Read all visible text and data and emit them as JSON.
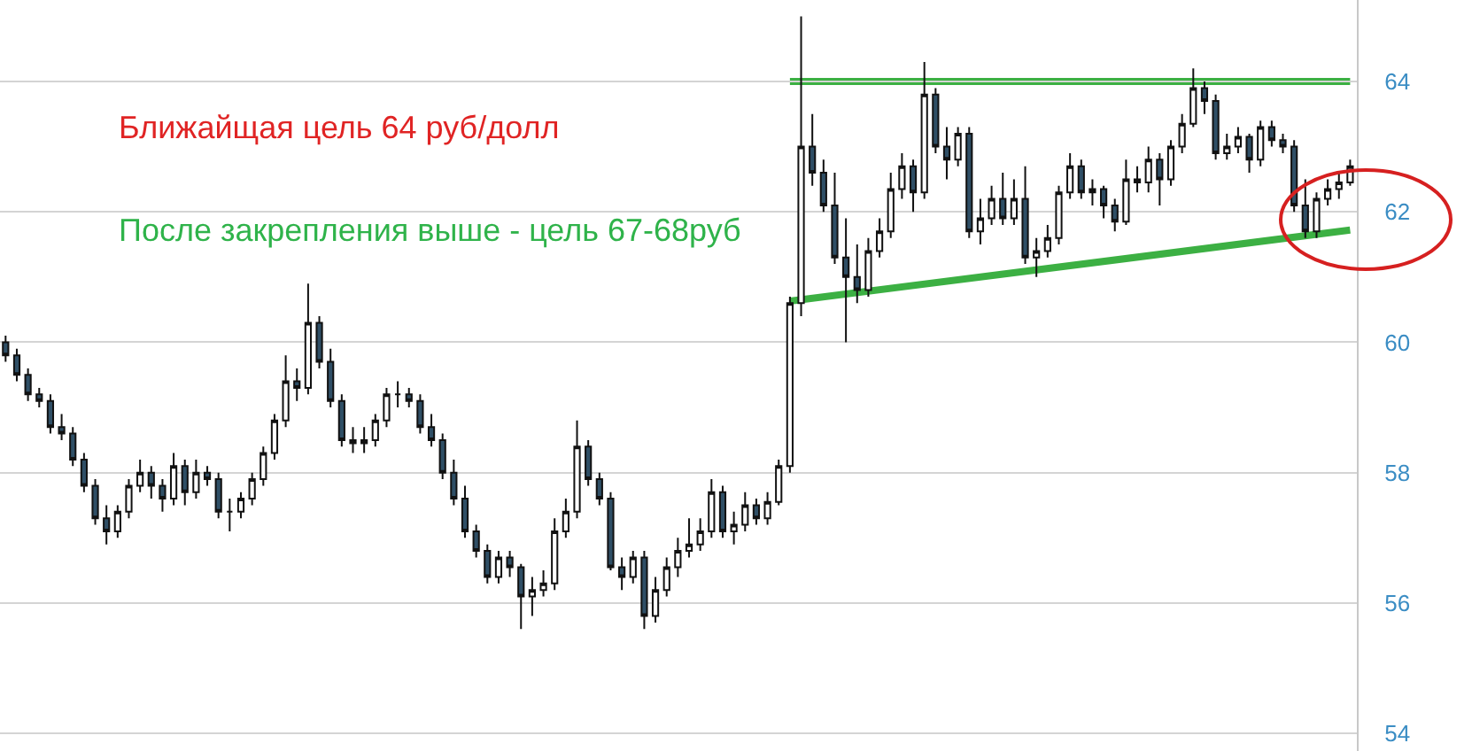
{
  "chart_data": {
    "type": "candlestick",
    "categories": [
      null,
      null,
      null,
      null,
      null,
      null,
      null,
      null,
      null,
      null,
      null,
      null,
      null,
      null,
      null,
      null,
      null,
      null,
      null,
      null,
      null,
      null,
      null,
      null,
      null,
      null,
      null,
      null,
      null,
      null,
      null,
      null,
      null,
      null,
      null,
      null,
      null,
      null,
      null,
      null,
      null,
      null,
      null,
      null,
      null,
      null,
      null,
      null,
      null,
      null,
      null,
      null,
      null,
      null,
      null,
      null,
      null,
      null,
      null,
      null,
      null,
      null,
      null,
      null,
      null,
      null,
      null,
      null,
      null,
      null,
      null,
      null,
      null,
      null,
      null,
      null,
      null,
      null,
      null,
      null,
      null,
      null,
      null,
      null,
      null,
      null,
      null,
      null,
      null,
      null,
      null,
      null,
      null,
      null,
      null,
      null,
      null,
      null,
      null,
      null,
      null,
      null,
      null,
      null,
      null,
      null,
      null,
      null,
      null,
      null,
      null,
      null,
      null,
      null,
      null,
      null,
      null,
      null,
      null,
      null,
      null
    ],
    "ohlc": [
      [
        60.0,
        60.1,
        59.7,
        59.8
      ],
      [
        59.8,
        59.9,
        59.4,
        59.5
      ],
      [
        59.5,
        59.6,
        59.1,
        59.2
      ],
      [
        59.2,
        59.3,
        59.0,
        59.1
      ],
      [
        59.1,
        59.2,
        58.6,
        58.7
      ],
      [
        58.7,
        58.9,
        58.5,
        58.6
      ],
      [
        58.6,
        58.7,
        58.1,
        58.2
      ],
      [
        58.2,
        58.3,
        57.7,
        57.8
      ],
      [
        57.8,
        57.9,
        57.2,
        57.3
      ],
      [
        57.3,
        57.5,
        56.9,
        57.1
      ],
      [
        57.1,
        57.5,
        57.0,
        57.4
      ],
      [
        57.4,
        57.9,
        57.3,
        57.8
      ],
      [
        57.8,
        58.2,
        57.7,
        58.0
      ],
      [
        58.0,
        58.1,
        57.6,
        57.8
      ],
      [
        57.8,
        57.9,
        57.4,
        57.6
      ],
      [
        57.6,
        58.3,
        57.5,
        58.1
      ],
      [
        58.1,
        58.2,
        57.5,
        57.7
      ],
      [
        57.7,
        58.2,
        57.6,
        58.0
      ],
      [
        58.0,
        58.1,
        57.8,
        57.9
      ],
      [
        57.9,
        58.0,
        57.3,
        57.4
      ],
      [
        57.4,
        57.6,
        57.1,
        57.4
      ],
      [
        57.4,
        57.7,
        57.3,
        57.6
      ],
      [
        57.6,
        58.0,
        57.5,
        57.9
      ],
      [
        57.9,
        58.4,
        57.8,
        58.3
      ],
      [
        58.3,
        58.9,
        58.2,
        58.8
      ],
      [
        58.8,
        59.8,
        58.7,
        59.4
      ],
      [
        59.4,
        59.6,
        59.1,
        59.3
      ],
      [
        59.3,
        60.9,
        59.2,
        60.3
      ],
      [
        60.3,
        60.4,
        59.6,
        59.7
      ],
      [
        59.7,
        59.9,
        59.0,
        59.1
      ],
      [
        59.1,
        59.2,
        58.4,
        58.5
      ],
      [
        58.5,
        58.7,
        58.3,
        58.45
      ],
      [
        58.45,
        58.7,
        58.3,
        58.5
      ],
      [
        58.5,
        58.9,
        58.4,
        58.8
      ],
      [
        58.8,
        59.3,
        58.7,
        59.2
      ],
      [
        59.2,
        59.4,
        59.0,
        59.2
      ],
      [
        59.2,
        59.3,
        59.0,
        59.1
      ],
      [
        59.1,
        59.2,
        58.6,
        58.7
      ],
      [
        58.7,
        58.9,
        58.4,
        58.5
      ],
      [
        58.5,
        58.6,
        57.9,
        58.0
      ],
      [
        58.0,
        58.2,
        57.5,
        57.6
      ],
      [
        57.6,
        57.8,
        57.0,
        57.1
      ],
      [
        57.1,
        57.2,
        56.7,
        56.8
      ],
      [
        56.8,
        56.9,
        56.3,
        56.4
      ],
      [
        56.4,
        56.8,
        56.3,
        56.7
      ],
      [
        56.7,
        56.8,
        56.4,
        56.55
      ],
      [
        56.55,
        56.6,
        55.6,
        56.1
      ],
      [
        56.1,
        56.4,
        55.8,
        56.2
      ],
      [
        56.2,
        56.5,
        56.1,
        56.3
      ],
      [
        56.3,
        57.3,
        56.2,
        57.1
      ],
      [
        57.1,
        57.6,
        57.0,
        57.4
      ],
      [
        57.4,
        58.8,
        57.3,
        58.4
      ],
      [
        58.4,
        58.5,
        57.8,
        57.9
      ],
      [
        57.9,
        58.0,
        57.5,
        57.6
      ],
      [
        57.6,
        57.7,
        56.5,
        56.55
      ],
      [
        56.55,
        56.7,
        56.2,
        56.4
      ],
      [
        56.4,
        56.8,
        56.3,
        56.7
      ],
      [
        56.7,
        56.8,
        55.6,
        55.8
      ],
      [
        55.8,
        56.4,
        55.7,
        56.2
      ],
      [
        56.2,
        56.7,
        56.1,
        56.55
      ],
      [
        56.55,
        57.0,
        56.4,
        56.8
      ],
      [
        56.8,
        57.3,
        56.7,
        56.9
      ],
      [
        56.9,
        57.3,
        56.8,
        57.1
      ],
      [
        57.1,
        57.9,
        57.0,
        57.7
      ],
      [
        57.7,
        57.8,
        57.0,
        57.1
      ],
      [
        57.1,
        57.4,
        56.9,
        57.2
      ],
      [
        57.2,
        57.7,
        57.1,
        57.5
      ],
      [
        57.5,
        57.6,
        57.2,
        57.3
      ],
      [
        57.3,
        57.7,
        57.2,
        57.55
      ],
      [
        57.55,
        58.2,
        57.5,
        58.1
      ],
      [
        58.1,
        60.7,
        58.0,
        60.6
      ],
      [
        60.6,
        65.0,
        60.4,
        63.0
      ],
      [
        63.0,
        63.5,
        62.4,
        62.6
      ],
      [
        62.6,
        62.8,
        62.0,
        62.1
      ],
      [
        62.1,
        62.6,
        61.2,
        61.3
      ],
      [
        61.3,
        61.9,
        60.0,
        61.0
      ],
      [
        61.0,
        61.5,
        60.6,
        60.8
      ],
      [
        60.8,
        61.6,
        60.7,
        61.4
      ],
      [
        61.4,
        61.9,
        61.3,
        61.7
      ],
      [
        61.7,
        62.6,
        61.6,
        62.35
      ],
      [
        62.35,
        62.9,
        62.2,
        62.7
      ],
      [
        62.7,
        62.8,
        62.0,
        62.3
      ],
      [
        62.3,
        64.3,
        62.2,
        63.8
      ],
      [
        63.8,
        63.9,
        62.9,
        63.0
      ],
      [
        63.0,
        63.3,
        62.5,
        62.8
      ],
      [
        62.8,
        63.3,
        62.7,
        63.2
      ],
      [
        63.2,
        63.3,
        61.6,
        61.7
      ],
      [
        61.7,
        62.2,
        61.5,
        61.9
      ],
      [
        61.9,
        62.4,
        61.8,
        62.2
      ],
      [
        62.2,
        62.6,
        61.8,
        61.9
      ],
      [
        61.9,
        62.5,
        61.8,
        62.2
      ],
      [
        62.2,
        62.7,
        61.2,
        61.3
      ],
      [
        61.3,
        61.6,
        61.0,
        61.4
      ],
      [
        61.4,
        61.8,
        61.3,
        61.6
      ],
      [
        61.6,
        62.4,
        61.5,
        62.3
      ],
      [
        62.3,
        62.9,
        62.2,
        62.7
      ],
      [
        62.7,
        62.8,
        62.2,
        62.3
      ],
      [
        62.3,
        62.5,
        62.1,
        62.35
      ],
      [
        62.35,
        62.4,
        61.9,
        62.1
      ],
      [
        62.1,
        62.2,
        61.7,
        61.85
      ],
      [
        61.85,
        62.8,
        61.8,
        62.5
      ],
      [
        62.5,
        62.7,
        62.3,
        62.45
      ],
      [
        62.45,
        63.0,
        62.3,
        62.8
      ],
      [
        62.8,
        62.9,
        62.1,
        62.5
      ],
      [
        62.5,
        63.1,
        62.4,
        63.0
      ],
      [
        63.0,
        63.5,
        62.9,
        63.35
      ],
      [
        63.35,
        64.2,
        63.3,
        63.9
      ],
      [
        63.9,
        64.0,
        63.5,
        63.7
      ],
      [
        63.7,
        63.8,
        62.8,
        62.9
      ],
      [
        62.9,
        63.2,
        62.8,
        63.0
      ],
      [
        63.0,
        63.3,
        62.9,
        63.15
      ],
      [
        63.15,
        63.2,
        62.6,
        62.8
      ],
      [
        62.8,
        63.4,
        62.7,
        63.3
      ],
      [
        63.3,
        63.4,
        63.0,
        63.1
      ],
      [
        63.1,
        63.2,
        62.9,
        63.0
      ],
      [
        63.0,
        63.1,
        62.0,
        62.1
      ],
      [
        62.1,
        62.5,
        61.6,
        61.7
      ],
      [
        61.7,
        62.3,
        61.6,
        62.2
      ],
      [
        62.2,
        62.5,
        62.1,
        62.35
      ],
      [
        62.35,
        62.6,
        62.2,
        62.45
      ],
      [
        62.45,
        62.8,
        62.4,
        62.7
      ]
    ],
    "series": [
      {
        "type": "line",
        "values": [
          null,
          null,
          null,
          null,
          null,
          null,
          null,
          null,
          null,
          null,
          null,
          null,
          null,
          null,
          null,
          null,
          null,
          null,
          null,
          null,
          null,
          null,
          null,
          null,
          null,
          null,
          null,
          null,
          null,
          null,
          null,
          null,
          null,
          null,
          null,
          null,
          null,
          null,
          null,
          null,
          null,
          null,
          null,
          null,
          null,
          null,
          null,
          null,
          null,
          null,
          null,
          null,
          null,
          null,
          null,
          null,
          null,
          null,
          null,
          null,
          null,
          null,
          null,
          null,
          null,
          null,
          null,
          null,
          null,
          null,
          64,
          null,
          null,
          null,
          null,
          null,
          null,
          null,
          null,
          null,
          null,
          null,
          null,
          null,
          null,
          null,
          null,
          null,
          null,
          null,
          null,
          null,
          null,
          null,
          null,
          null,
          null,
          null,
          null,
          null,
          null,
          null,
          null,
          null,
          null,
          null,
          null,
          null,
          null,
          null,
          null,
          null,
          null,
          null,
          null,
          null,
          null,
          null,
          null,
          null,
          64
        ],
        "color": "#3cb043"
      },
      {
        "type": "line",
        "values": [
          null,
          null,
          null,
          null,
          null,
          null,
          null,
          null,
          null,
          null,
          null,
          null,
          null,
          null,
          null,
          null,
          null,
          null,
          null,
          null,
          null,
          null,
          null,
          null,
          null,
          null,
          null,
          null,
          null,
          null,
          null,
          null,
          null,
          null,
          null,
          null,
          null,
          null,
          null,
          null,
          null,
          null,
          null,
          null,
          null,
          null,
          null,
          null,
          null,
          null,
          null,
          null,
          null,
          null,
          null,
          null,
          null,
          null,
          null,
          null,
          null,
          null,
          null,
          null,
          null,
          null,
          null,
          null,
          null,
          null,
          60.63,
          null,
          null,
          null,
          null,
          null,
          null,
          null,
          null,
          null,
          null,
          null,
          null,
          null,
          null,
          null,
          null,
          null,
          null,
          null,
          null,
          null,
          null,
          null,
          null,
          null,
          null,
          null,
          null,
          null,
          null,
          null,
          null,
          null,
          null,
          null,
          null,
          null,
          null,
          null,
          null,
          null,
          null,
          null,
          null,
          null,
          null,
          null,
          null,
          null,
          61.72
        ],
        "color": "#3cb043"
      }
    ],
    "ylim": [
      53.73,
      65.25
    ],
    "yticks": [
      54,
      56,
      58,
      60,
      62,
      64
    ],
    "grid": "y",
    "tick_labels": "y",
    "annotations": [
      "Ближайщая цель 64 руб/долл",
      "После закрепления выше - цель 67-68руб"
    ]
  }
}
